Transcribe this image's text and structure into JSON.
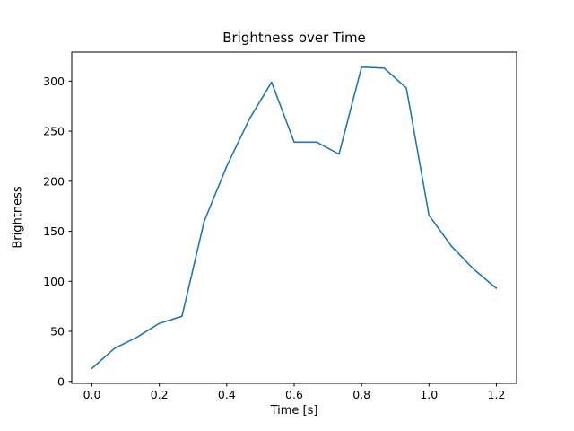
{
  "figure": {
    "background": "#ffffff"
  },
  "chart_data": {
    "type": "line",
    "title": "Brightness over Time",
    "xlabel": "Time [s]",
    "ylabel": "Brightness",
    "x": [
      0.0,
      0.067,
      0.133,
      0.2,
      0.267,
      0.333,
      0.4,
      0.467,
      0.533,
      0.6,
      0.667,
      0.733,
      0.8,
      0.867,
      0.933,
      1.0,
      1.067,
      1.133,
      1.2
    ],
    "values": [
      13,
      33,
      44,
      58,
      65,
      160,
      215,
      262,
      299,
      239,
      239,
      227,
      314,
      313,
      293,
      166,
      135,
      112,
      93
    ],
    "xticks": [
      0.0,
      0.2,
      0.4,
      0.6,
      0.8,
      1.0,
      1.2
    ],
    "xtick_labels": [
      "0.0",
      "0.2",
      "0.4",
      "0.6",
      "0.8",
      "1.0",
      "1.2"
    ],
    "yticks": [
      0,
      50,
      100,
      150,
      200,
      250,
      300
    ],
    "ytick_labels": [
      "0",
      "50",
      "100",
      "150",
      "200",
      "250",
      "300"
    ],
    "xlim": [
      -0.06,
      1.26
    ],
    "ylim": [
      -2,
      329
    ],
    "line_color": "#1f77b4",
    "axes_color": "#000000",
    "grid": false,
    "legend": null
  }
}
